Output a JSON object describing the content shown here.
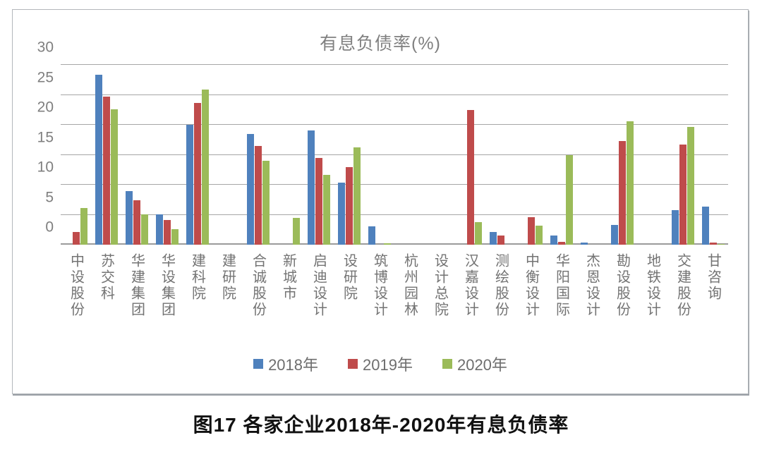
{
  "caption": "图17  各家企业2018年-2020年有息负债率",
  "chart_data": {
    "type": "bar",
    "title": "有息负债率(%)",
    "categories": [
      "中设股份",
      "苏交科",
      "华建集团",
      "华设集团",
      "建科院",
      "建研院",
      "合诚股份",
      "新城市",
      "启迪设计",
      "设研院",
      "筑博设计",
      "杭州园林",
      "设计总院",
      "汉嘉设计",
      "测绘股份",
      "中衡设计",
      "华阳国际",
      "杰恩设计",
      "勘设股份",
      "地铁设计",
      "交建股份",
      "甘咨询"
    ],
    "series": [
      {
        "name": "2018年",
        "color": "#4f81bd",
        "values": [
          0,
          28.4,
          8.9,
          5.0,
          20.0,
          0,
          18.5,
          0,
          19.0,
          10.4,
          3.0,
          0,
          0,
          0,
          2.1,
          0,
          1.5,
          0.3,
          3.3,
          0,
          5.8,
          6.3
        ]
      },
      {
        "name": "2019年",
        "color": "#bf4b4b",
        "values": [
          2.1,
          24.7,
          7.4,
          4.1,
          23.7,
          0,
          16.5,
          0,
          14.5,
          12.9,
          0,
          0,
          0,
          22.5,
          1.5,
          4.6,
          0.5,
          0,
          17.3,
          0,
          16.7,
          0.3
        ]
      },
      {
        "name": "2020年",
        "color": "#9bbb59",
        "values": [
          6.1,
          22.6,
          5.0,
          2.6,
          25.9,
          0,
          14.0,
          4.5,
          11.6,
          16.2,
          0.2,
          0,
          0,
          3.8,
          0,
          3.2,
          14.9,
          0,
          20.6,
          0,
          19.6,
          0.1
        ]
      }
    ],
    "ylim": [
      0,
      30
    ],
    "yticks": [
      0,
      5,
      10,
      15,
      20,
      25,
      30
    ],
    "grid": true,
    "legend_position": "bottom",
    "gridline_color": "#a6a6a6",
    "axis_text_color": "#7f7f7f"
  }
}
